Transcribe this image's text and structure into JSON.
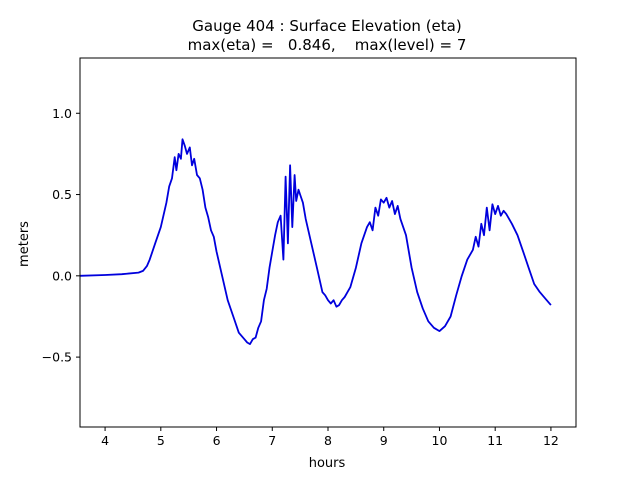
{
  "chart_data": {
    "type": "line",
    "title": "Gauge 404 : Surface Elevation (eta)",
    "subtitle": "max(eta) =   0.846,    max(level) = 7",
    "xlabel": "hours",
    "ylabel": "meters",
    "xlim": [
      3.55,
      12.45
    ],
    "ylim": [
      -0.93,
      1.34
    ],
    "xticks": [
      4,
      5,
      6,
      7,
      8,
      9,
      10,
      11,
      12
    ],
    "yticks": [
      -0.5,
      0.0,
      0.5,
      1.0
    ],
    "xtick_labels": [
      "4",
      "5",
      "6",
      "7",
      "8",
      "9",
      "10",
      "11",
      "12"
    ],
    "ytick_labels": [
      "−0.5",
      "0.0",
      "0.5",
      "1.0"
    ],
    "grid": false,
    "series": [
      {
        "name": "eta",
        "color": "#0000dd",
        "x": [
          3.55,
          4.0,
          4.3,
          4.6,
          4.68,
          4.75,
          4.8,
          4.9,
          5.0,
          5.1,
          5.15,
          5.2,
          5.25,
          5.28,
          5.32,
          5.36,
          5.39,
          5.43,
          5.47,
          5.52,
          5.56,
          5.6,
          5.65,
          5.7,
          5.75,
          5.8,
          5.85,
          5.9,
          5.95,
          6.0,
          6.1,
          6.2,
          6.3,
          6.4,
          6.5,
          6.55,
          6.6,
          6.65,
          6.7,
          6.75,
          6.8,
          6.85,
          6.9,
          6.95,
          7.0,
          7.05,
          7.1,
          7.15,
          7.2,
          7.24,
          7.28,
          7.32,
          7.36,
          7.4,
          7.43,
          7.47,
          7.5,
          7.55,
          7.6,
          7.7,
          7.8,
          7.9,
          7.95,
          8.0,
          8.05,
          8.1,
          8.15,
          8.2,
          8.25,
          8.3,
          8.35,
          8.4,
          8.5,
          8.6,
          8.7,
          8.75,
          8.8,
          8.85,
          8.9,
          8.95,
          9.0,
          9.05,
          9.1,
          9.15,
          9.2,
          9.25,
          9.3,
          9.4,
          9.5,
          9.6,
          9.7,
          9.8,
          9.9,
          10.0,
          10.1,
          10.2,
          10.3,
          10.4,
          10.5,
          10.6,
          10.65,
          10.7,
          10.75,
          10.8,
          10.85,
          10.9,
          10.95,
          11.0,
          11.05,
          11.1,
          11.15,
          11.2,
          11.25,
          11.3,
          11.4,
          11.5,
          11.6,
          11.7,
          11.8,
          11.9,
          12.0
        ],
        "y": [
          0.0,
          0.005,
          0.01,
          0.02,
          0.03,
          0.06,
          0.1,
          0.2,
          0.3,
          0.45,
          0.55,
          0.6,
          0.73,
          0.65,
          0.75,
          0.72,
          0.84,
          0.8,
          0.75,
          0.79,
          0.68,
          0.72,
          0.62,
          0.6,
          0.53,
          0.42,
          0.36,
          0.28,
          0.24,
          0.15,
          0.0,
          -0.15,
          -0.25,
          -0.35,
          -0.39,
          -0.41,
          -0.42,
          -0.39,
          -0.38,
          -0.32,
          -0.28,
          -0.15,
          -0.08,
          0.05,
          0.15,
          0.25,
          0.33,
          0.37,
          0.1,
          0.61,
          0.2,
          0.68,
          0.3,
          0.62,
          0.46,
          0.53,
          0.5,
          0.45,
          0.35,
          0.2,
          0.05,
          -0.1,
          -0.12,
          -0.15,
          -0.17,
          -0.15,
          -0.19,
          -0.18,
          -0.15,
          -0.13,
          -0.1,
          -0.07,
          0.05,
          0.2,
          0.3,
          0.33,
          0.28,
          0.42,
          0.37,
          0.47,
          0.45,
          0.48,
          0.42,
          0.46,
          0.38,
          0.43,
          0.35,
          0.25,
          0.05,
          -0.1,
          -0.2,
          -0.28,
          -0.32,
          -0.34,
          -0.31,
          -0.25,
          -0.12,
          0.0,
          0.1,
          0.16,
          0.24,
          0.18,
          0.32,
          0.25,
          0.42,
          0.28,
          0.44,
          0.38,
          0.43,
          0.37,
          0.4,
          0.38,
          0.35,
          0.32,
          0.25,
          0.15,
          0.05,
          -0.05,
          -0.1,
          -0.14,
          -0.18
        ]
      }
    ]
  }
}
